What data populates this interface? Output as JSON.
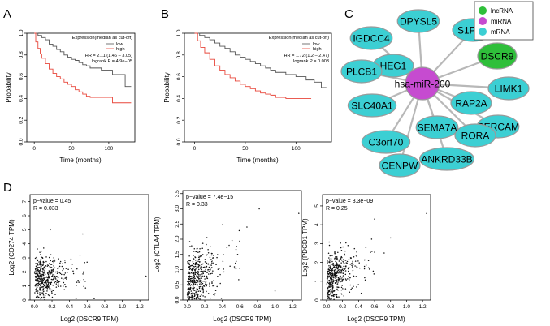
{
  "panels": {
    "A": "A",
    "B": "B",
    "C": "C",
    "D": "D"
  },
  "colors": {
    "low": "#555555",
    "high": "#e8463a",
    "lncRNA": "#2fbf3a",
    "miRNA": "#c64bd0",
    "mRNA": "#3ccfd3",
    "edge": "#b8b8b8",
    "node_stroke": "#9a9a9a",
    "point": "#111111"
  },
  "chart_data": [
    {
      "id": "A",
      "type": "line",
      "title": "",
      "xlabel": "Time (months)",
      "ylabel": "Probability",
      "xlim": [
        -10,
        135
      ],
      "ylim": [
        0,
        1
      ],
      "xticks": [
        "0",
        "50",
        "100"
      ],
      "xtick_values": [
        0,
        50,
        100
      ],
      "yticks": [
        "0.0",
        "0.2",
        "0.4",
        "0.6",
        "0.8",
        "1.0"
      ],
      "ytick_values": [
        0,
        0.2,
        0.4,
        0.6,
        0.8,
        1.0
      ],
      "legend_title": "Expression(median as cut-off)",
      "legend": [
        "low",
        "high"
      ],
      "annotations": [
        "HR = 2.11 (1.46 – 3.05)",
        "logrank P = 4.9e−05"
      ],
      "series": [
        {
          "name": "low",
          "points": [
            [
              0,
              1
            ],
            [
              5,
              0.98
            ],
            [
              10,
              0.96
            ],
            [
              15,
              0.94
            ],
            [
              20,
              0.9
            ],
            [
              25,
              0.88
            ],
            [
              30,
              0.85
            ],
            [
              35,
              0.83
            ],
            [
              40,
              0.8
            ],
            [
              45,
              0.78
            ],
            [
              50,
              0.76
            ],
            [
              55,
              0.75
            ],
            [
              60,
              0.73
            ],
            [
              65,
              0.71
            ],
            [
              70,
              0.7
            ],
            [
              75,
              0.68
            ],
            [
              80,
              0.68
            ],
            [
              90,
              0.66
            ],
            [
              100,
              0.66
            ],
            [
              105,
              0.62
            ],
            [
              110,
              0.62
            ],
            [
              120,
              0.62
            ],
            [
              122,
              0.51
            ],
            [
              130,
              0.51
            ]
          ]
        },
        {
          "name": "high",
          "points": [
            [
              0,
              1
            ],
            [
              2,
              0.92
            ],
            [
              5,
              0.86
            ],
            [
              8,
              0.81
            ],
            [
              10,
              0.77
            ],
            [
              15,
              0.72
            ],
            [
              20,
              0.67
            ],
            [
              25,
              0.63
            ],
            [
              30,
              0.6
            ],
            [
              35,
              0.58
            ],
            [
              40,
              0.55
            ],
            [
              45,
              0.53
            ],
            [
              50,
              0.51
            ],
            [
              55,
              0.48
            ],
            [
              60,
              0.46
            ],
            [
              65,
              0.44
            ],
            [
              70,
              0.42
            ],
            [
              75,
              0.41
            ],
            [
              80,
              0.41
            ],
            [
              100,
              0.41
            ],
            [
              105,
              0.36
            ],
            [
              130,
              0.36
            ]
          ]
        }
      ]
    },
    {
      "id": "B",
      "type": "line",
      "title": "",
      "xlabel": "Time (months)",
      "ylabel": "Probability",
      "xlim": [
        -10,
        135
      ],
      "ylim": [
        0,
        1
      ],
      "xticks": [
        "0",
        "50",
        "100"
      ],
      "xtick_values": [
        0,
        50,
        100
      ],
      "yticks": [
        "0.0",
        "0.2",
        "0.4",
        "0.6",
        "0.8",
        "1.0"
      ],
      "ytick_values": [
        0,
        0.2,
        0.4,
        0.6,
        0.8,
        1.0
      ],
      "legend_title": "Expression(median as cut-off)",
      "legend": [
        "low",
        "high"
      ],
      "annotations": [
        "HR = 1.72 (1.2 – 2.47)",
        "logrank P = 0.003"
      ],
      "series": [
        {
          "name": "low",
          "points": [
            [
              0,
              1
            ],
            [
              5,
              0.98
            ],
            [
              10,
              0.96
            ],
            [
              15,
              0.94
            ],
            [
              20,
              0.91
            ],
            [
              25,
              0.88
            ],
            [
              30,
              0.86
            ],
            [
              35,
              0.83
            ],
            [
              40,
              0.8
            ],
            [
              45,
              0.78
            ],
            [
              50,
              0.76
            ],
            [
              55,
              0.74
            ],
            [
              60,
              0.72
            ],
            [
              65,
              0.7
            ],
            [
              70,
              0.68
            ],
            [
              75,
              0.66
            ],
            [
              80,
              0.64
            ],
            [
              90,
              0.62
            ],
            [
              100,
              0.6
            ],
            [
              110,
              0.57
            ],
            [
              118,
              0.55
            ],
            [
              125,
              0.5
            ],
            [
              130,
              0.5
            ]
          ]
        },
        {
          "name": "high",
          "points": [
            [
              0,
              1
            ],
            [
              3,
              0.93
            ],
            [
              6,
              0.87
            ],
            [
              10,
              0.82
            ],
            [
              15,
              0.76
            ],
            [
              20,
              0.7
            ],
            [
              25,
              0.66
            ],
            [
              30,
              0.62
            ],
            [
              35,
              0.59
            ],
            [
              40,
              0.56
            ],
            [
              45,
              0.53
            ],
            [
              50,
              0.51
            ],
            [
              55,
              0.49
            ],
            [
              60,
              0.47
            ],
            [
              65,
              0.45
            ],
            [
              70,
              0.44
            ],
            [
              75,
              0.43
            ],
            [
              80,
              0.41
            ],
            [
              90,
              0.4
            ],
            [
              100,
              0.4
            ],
            [
              115,
              0.4
            ]
          ]
        }
      ]
    },
    {
      "id": "D1",
      "type": "scatter",
      "xlabel": "Log2 (DSCR9 TPM)",
      "ylabel": "Log2 (CD274 TPM)",
      "xlim": [
        -0.05,
        1.3
      ],
      "ylim": [
        0,
        7.5
      ],
      "xticks": [
        "0.0",
        "0.2",
        "0.4",
        "0.6",
        "0.8",
        "1.0",
        "1.2"
      ],
      "xtick_values": [
        0,
        0.2,
        0.4,
        0.6,
        0.8,
        1.0,
        1.2
      ],
      "yticks": [
        "0",
        "1",
        "2",
        "3",
        "4",
        "5",
        "6",
        "7"
      ],
      "ytick_values": [
        0,
        1,
        2,
        3,
        4,
        5,
        6,
        7
      ],
      "annotations": [
        "p−value = 0.45",
        "R = 0.033"
      ],
      "n_points": 430,
      "seed": 11,
      "outliers": [
        [
          1.27,
          1.7
        ],
        [
          0.68,
          0.1
        ],
        [
          0.55,
          4.7
        ],
        [
          0.18,
          5.0
        ]
      ]
    },
    {
      "id": "D2",
      "type": "scatter",
      "xlabel": "Log2 (DSCR9 TPM)",
      "ylabel": "Log2 (CTLA4 TPM)",
      "xlim": [
        -0.05,
        1.3
      ],
      "ylim": [
        0,
        3.6
      ],
      "xticks": [
        "0.0",
        "0.2",
        "0.4",
        "0.6",
        "0.8",
        "1.0",
        "1.2"
      ],
      "xtick_values": [
        0,
        0.2,
        0.4,
        0.6,
        0.8,
        1.0,
        1.2
      ],
      "yticks": [
        "0.0",
        "0.5",
        "1.0",
        "1.5",
        "2.0",
        "2.5",
        "3.0",
        "3.5"
      ],
      "ytick_values": [
        0,
        0.5,
        1.0,
        1.5,
        2.0,
        2.5,
        3.0,
        3.5
      ],
      "annotations": [
        "p−value = 7.4e−15",
        "R = 0.33"
      ],
      "n_points": 430,
      "seed": 29,
      "outliers": [
        [
          1.27,
          2.85
        ],
        [
          0.82,
          3.0
        ],
        [
          0.68,
          2.4
        ],
        [
          1.0,
          0.3
        ]
      ]
    },
    {
      "id": "D3",
      "type": "scatter",
      "xlabel": "Log2 (DSCR9 TPM)",
      "ylabel": "Log2 (PDCD1 TPM)",
      "xlim": [
        -0.05,
        1.3
      ],
      "ylim": [
        0,
        5.6
      ],
      "xticks": [
        "0.0",
        "0.2",
        "0.4",
        "0.6",
        "0.8",
        "1.0",
        "1.2"
      ],
      "xtick_values": [
        0,
        0.2,
        0.4,
        0.6,
        0.8,
        1.0,
        1.2
      ],
      "yticks": [
        "0",
        "1",
        "2",
        "3",
        "4",
        "5"
      ],
      "ytick_values": [
        0,
        1,
        2,
        3,
        4,
        5
      ],
      "annotations": [
        "p−value = 3.3e−09",
        "R = 0.25"
      ],
      "n_points": 430,
      "seed": 47,
      "outliers": [
        [
          1.25,
          4.6
        ],
        [
          0.8,
          3.3
        ],
        [
          0.72,
          2.5
        ],
        [
          0.6,
          4.3
        ]
      ]
    }
  ],
  "network": {
    "legend": [
      "lncRNA",
      "miRNA",
      "mRNA"
    ],
    "center": "hsa-miR-200",
    "lncrna": "DSCR9",
    "mrnas": [
      "DPYSL5",
      "S1PR1",
      "IGDCC4",
      "HEG1",
      "PLCB1",
      "LIMK1",
      "SLC40A1",
      "RAP2A",
      "CERCAM",
      "SEMA7A",
      "RORA",
      "C3orf70",
      "ANKRD33B",
      "CENPW"
    ]
  }
}
